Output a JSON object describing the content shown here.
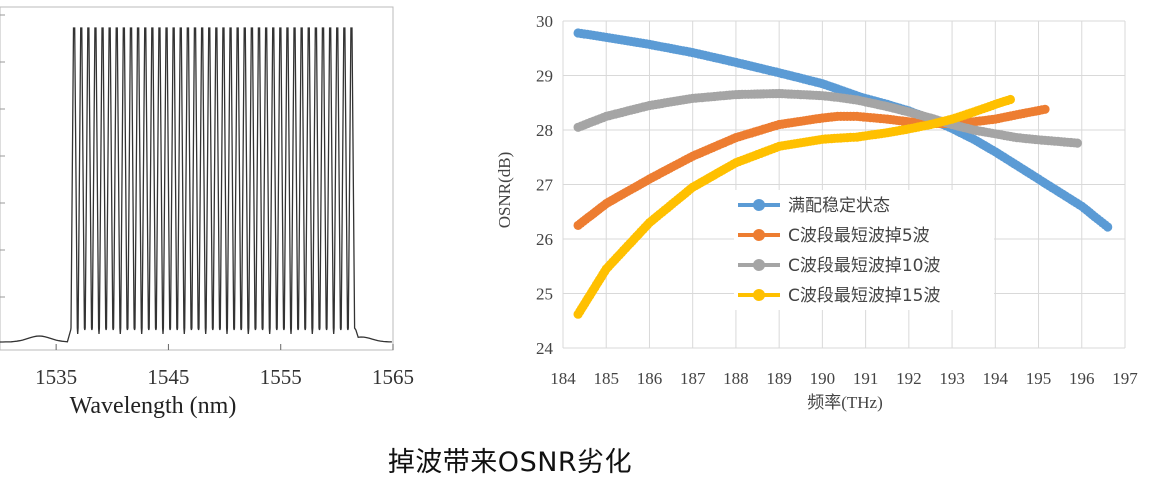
{
  "caption": "掉波带来OSNR劣化",
  "chart_data": [
    {
      "type": "line",
      "description": "spectrum",
      "xlabel": "Wavelength (nm)",
      "ylabel": "",
      "xlim": [
        1530,
        1565
      ],
      "x_ticks": [
        1535,
        1545,
        1555,
        1565
      ],
      "x_tick_labels": [
        "1535",
        "1545",
        "1555",
        "1565"
      ],
      "channel_count": 40,
      "channel_start_nm": 1536.6,
      "channel_end_nm": 1561.3,
      "grid": false,
      "color": "#333333"
    },
    {
      "type": "scatter",
      "xlabel": "频率(THz)",
      "ylabel": "OSNR(dB)",
      "xlim": [
        184,
        197
      ],
      "ylim": [
        24,
        30
      ],
      "x_ticks": [
        184,
        185,
        186,
        187,
        188,
        189,
        190,
        191,
        192,
        193,
        194,
        195,
        196,
        197
      ],
      "y_ticks": [
        24,
        25,
        26,
        27,
        28,
        29,
        30
      ],
      "grid": true,
      "legend_position": "center",
      "series": [
        {
          "name": "满配稳定状态",
          "color": "#5b9bd5",
          "x": [
            184.35,
            185,
            186,
            187,
            188,
            189,
            190,
            190.9,
            191.5,
            192,
            192.5,
            193,
            193.5,
            194,
            194.5,
            195,
            195.5,
            196,
            196.6
          ],
          "y": [
            29.78,
            29.7,
            29.57,
            29.42,
            29.24,
            29.05,
            28.85,
            28.6,
            28.47,
            28.35,
            28.2,
            28.03,
            27.83,
            27.6,
            27.35,
            27.1,
            26.85,
            26.6,
            26.22
          ]
        },
        {
          "name": "C波段最短波掉5波",
          "color": "#ed7d31",
          "x": [
            184.35,
            185,
            186,
            187,
            188,
            189,
            190,
            190.35,
            190.8,
            191.5,
            192,
            192.5,
            193,
            193.5,
            194,
            194.5,
            195.15
          ],
          "y": [
            26.25,
            26.65,
            27.1,
            27.52,
            27.86,
            28.1,
            28.22,
            28.25,
            28.25,
            28.2,
            28.15,
            28.12,
            28.12,
            28.15,
            28.2,
            28.28,
            28.38
          ]
        },
        {
          "name": "C波段最短波掉10波",
          "color": "#a5a5a5",
          "x": [
            184.35,
            185,
            186,
            187,
            188,
            189,
            190,
            190.35,
            190.8,
            191.5,
            192,
            192.5,
            193,
            193.5,
            194,
            194.5,
            195,
            195.9
          ],
          "y": [
            28.05,
            28.25,
            28.45,
            28.58,
            28.65,
            28.67,
            28.63,
            28.6,
            28.55,
            28.43,
            28.33,
            28.22,
            28.1,
            28.0,
            27.93,
            27.86,
            27.82,
            27.76
          ]
        },
        {
          "name": "C波段最短波掉15波",
          "color": "#ffc000",
          "x": [
            184.35,
            185,
            186,
            187,
            188,
            189,
            190,
            190.35,
            190.8,
            191.5,
            192,
            192.5,
            193,
            193.5,
            194,
            194.35
          ],
          "y": [
            24.62,
            25.45,
            26.3,
            26.95,
            27.4,
            27.7,
            27.83,
            27.85,
            27.87,
            27.95,
            28.02,
            28.1,
            28.2,
            28.33,
            28.47,
            28.56
          ]
        }
      ]
    }
  ]
}
